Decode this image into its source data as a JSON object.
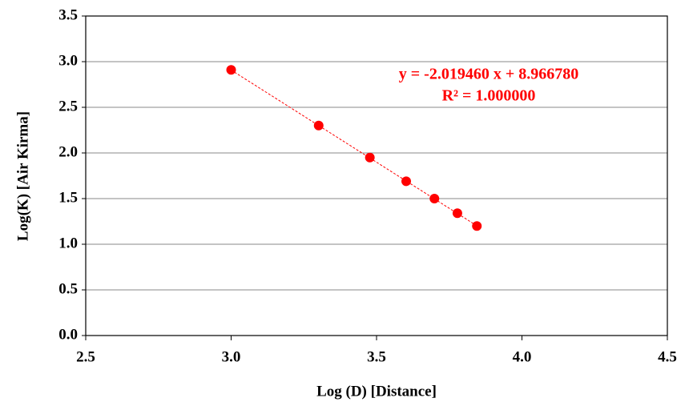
{
  "chart_data": {
    "type": "scatter",
    "x_label": "Log (D) [Distance]",
    "y_label": "Log(K) [Air Kirma]",
    "annotations": [
      "y = -2.019460 x + 8.966780",
      "R² = 1.000000"
    ],
    "series": [
      {
        "color": "#ff0000",
        "x": [
          3.0,
          3.301,
          3.477,
          3.602,
          3.699,
          3.778,
          3.845
        ],
        "values": [
          2.91,
          2.3,
          1.95,
          1.69,
          1.5,
          1.34,
          1.2
        ]
      }
    ],
    "trendline": {
      "color": "#ff0000",
      "x": [
        3.0,
        3.845
      ],
      "values": [
        2.908,
        1.202
      ]
    },
    "xlim": [
      2.5,
      4.5
    ],
    "xticks": [
      2.5,
      {
        "value": 3,
        "label": "3.0"
      },
      3.5,
      {
        "value": 4,
        "label": "4.0"
      },
      4.5
    ],
    "ylim": [
      0,
      3.5
    ],
    "yticks": [
      {
        "value": 0,
        "label": "0.0"
      },
      0.5,
      {
        "value": 1,
        "label": "1.0"
      },
      1.5,
      {
        "value": 2,
        "label": "2.0"
      },
      2.5,
      {
        "value": 3,
        "label": "3.0"
      },
      3.5
    ],
    "grid": true
  }
}
